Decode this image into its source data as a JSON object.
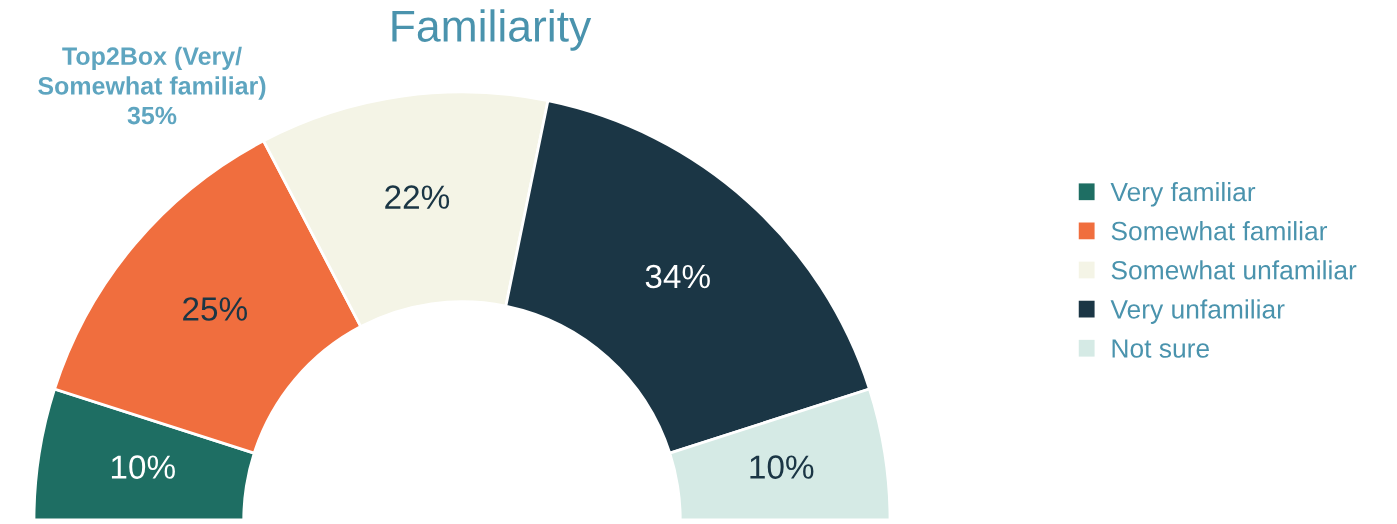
{
  "chart_data": {
    "type": "donut",
    "title": "Familiarity",
    "categories": [
      "Very familiar",
      "Somewhat familiar",
      "Somewhat unfamiliar",
      "Very unfamiliar",
      "Not sure"
    ],
    "values": [
      10,
      25,
      22,
      34,
      10
    ],
    "colors": [
      "#1e6e63",
      "#f06e3e",
      "#f4f4e6",
      "#1b3645",
      "#d5eae5"
    ],
    "value_labels": [
      "10%",
      "25%",
      "22%",
      "34%",
      "10%"
    ],
    "legend": "right",
    "annotations": [
      "Top2Box (Very/\nSomewhat familiar)\n35%"
    ]
  }
}
